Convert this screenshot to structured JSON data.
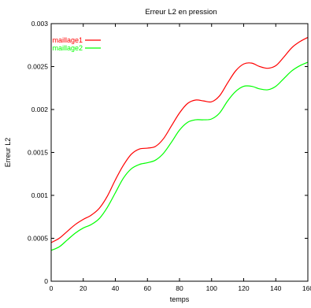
{
  "chart_data": {
    "type": "line",
    "title": "Erreur L2 en pression",
    "xlabel": "temps",
    "ylabel": "Erreur L2",
    "xlim": [
      0,
      160
    ],
    "ylim": [
      0,
      0.003
    ],
    "x_ticks": [
      "0",
      "20",
      "40",
      "60",
      "80",
      "100",
      "120",
      "140",
      "160"
    ],
    "y_ticks": [
      "0",
      "0.0005",
      "0.001",
      "0.0015",
      "0.002",
      "0.0025",
      "0.003"
    ],
    "grid": false,
    "legend_position": "top-left",
    "series": [
      {
        "name": "maillage1",
        "color": "#ff0000",
        "x": [
          0,
          5,
          10,
          15,
          20,
          25,
          30,
          35,
          40,
          45,
          50,
          55,
          60,
          65,
          70,
          75,
          80,
          85,
          90,
          95,
          100,
          105,
          110,
          115,
          120,
          125,
          130,
          135,
          140,
          145,
          150,
          155,
          160
        ],
        "y": [
          0.00045,
          0.0005,
          0.00058,
          0.00066,
          0.00072,
          0.00077,
          0.00085,
          0.00099,
          0.00118,
          0.00135,
          0.00148,
          0.00154,
          0.00155,
          0.00157,
          0.00166,
          0.00181,
          0.00196,
          0.00207,
          0.00211,
          0.0021,
          0.00209,
          0.00216,
          0.00231,
          0.00245,
          0.00253,
          0.00254,
          0.0025,
          0.00248,
          0.00251,
          0.00261,
          0.00272,
          0.00279,
          0.00284
        ]
      },
      {
        "name": "maillage2",
        "color": "#00ff00",
        "x": [
          0,
          5,
          10,
          15,
          20,
          25,
          30,
          35,
          40,
          45,
          50,
          55,
          60,
          65,
          70,
          75,
          80,
          85,
          90,
          95,
          100,
          105,
          110,
          115,
          120,
          125,
          130,
          135,
          140,
          145,
          150,
          155,
          160
        ],
        "y": [
          0.00036,
          0.0004,
          0.00048,
          0.00056,
          0.00062,
          0.00066,
          0.00073,
          0.00086,
          0.00103,
          0.0012,
          0.00131,
          0.00136,
          0.00138,
          0.00141,
          0.00149,
          0.00162,
          0.00176,
          0.00185,
          0.00188,
          0.00188,
          0.00189,
          0.00196,
          0.0021,
          0.00221,
          0.00227,
          0.00227,
          0.00224,
          0.00223,
          0.00227,
          0.00236,
          0.00245,
          0.00251,
          0.00255
        ]
      }
    ]
  }
}
